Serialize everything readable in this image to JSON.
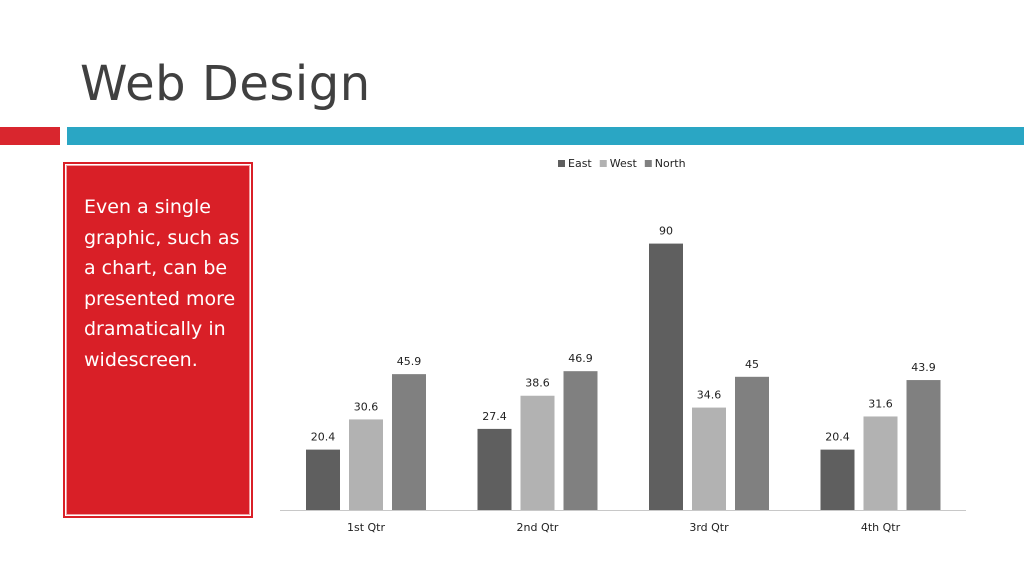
{
  "slide": {
    "title": "Web Design",
    "callout_text": "Even a single graphic, such as a chart, can be presented more dramatically in widescreen."
  },
  "colors": {
    "accent_red": "#d9262e",
    "accent_teal": "#2aa6c4",
    "callout_bg": "#d91f27"
  },
  "chart_data": {
    "type": "bar",
    "categories": [
      "1st Qtr",
      "2nd Qtr",
      "3rd Qtr",
      "4th Qtr"
    ],
    "series": [
      {
        "name": "East",
        "values": [
          20.4,
          27.4,
          90,
          20.4
        ],
        "color": "#5f5f5f"
      },
      {
        "name": "West",
        "values": [
          30.6,
          38.6,
          34.6,
          31.6
        ],
        "color": "#b2b2b2"
      },
      {
        "name": "North",
        "values": [
          45.9,
          46.9,
          45,
          43.9
        ],
        "color": "#808080"
      }
    ],
    "data_labels": true,
    "legend_position": "top",
    "ylim": [
      0,
      100
    ],
    "grid": false,
    "title": "",
    "xlabel": "",
    "ylabel": ""
  }
}
